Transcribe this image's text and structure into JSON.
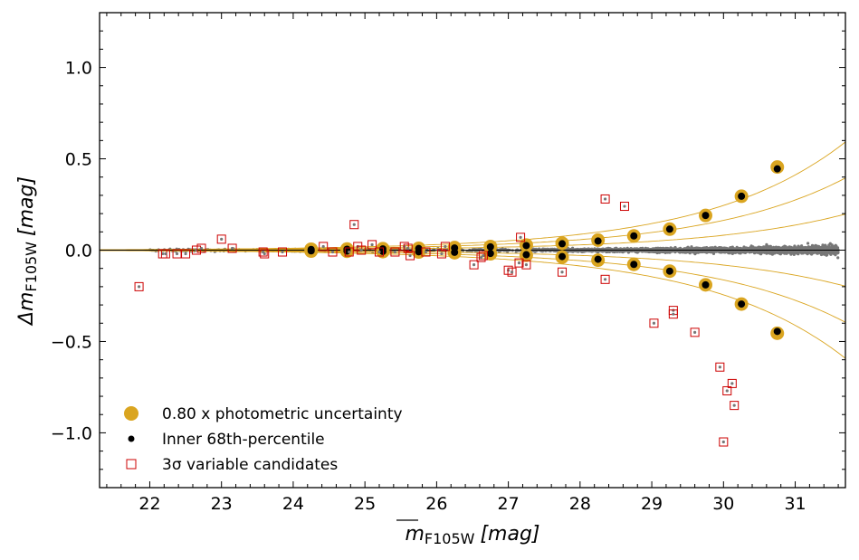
{
  "chart_data": {
    "type": "scatter",
    "xlabel": {
      "main": "m",
      "sub": "F105W",
      "unit": "[mag]"
    },
    "ylabel": {
      "main": "Δm",
      "sub": "F105W",
      "unit": "[mag]"
    },
    "xlim": [
      21.3,
      31.7
    ],
    "ylim": [
      -1.3,
      1.3
    ],
    "xticks": [
      22,
      23,
      24,
      25,
      26,
      27,
      28,
      29,
      30,
      31
    ],
    "yticks": [
      -1.0,
      -0.5,
      0.0,
      0.5,
      1.0
    ],
    "ytick_labels": [
      "−1.0",
      "−0.5",
      "0.0",
      "0.5",
      "1.0"
    ],
    "legend": {
      "position": "lower-left",
      "entries": [
        {
          "label": "0.80 x photometric uncertainty",
          "marker": "large-circle",
          "color": "#DAA520"
        },
        {
          "label": "Inner 68th-percentile",
          "marker": "small-circle",
          "color": "#000000"
        },
        {
          "label": "3σ variable candidates",
          "marker": "open-square",
          "color": "#CC0000"
        }
      ]
    },
    "colors": {
      "points": "#777777",
      "uncertainty": "#DAA520",
      "percentile": "#000000",
      "variables": "#CC0000",
      "curves": "#DAA520"
    },
    "uncertainty_points": {
      "x": [
        24.25,
        24.75,
        25.25,
        25.75,
        26.25,
        26.75,
        27.25,
        27.75,
        28.25,
        28.75,
        29.25,
        29.75,
        30.25,
        30.75
      ],
      "upper": [
        0.005,
        0.006,
        0.008,
        0.01,
        0.014,
        0.02,
        0.028,
        0.038,
        0.055,
        0.078,
        0.115,
        0.19,
        0.295,
        0.455
      ],
      "lower": [
        -0.005,
        -0.006,
        -0.008,
        -0.01,
        -0.014,
        -0.02,
        -0.028,
        -0.038,
        -0.055,
        -0.078,
        -0.115,
        -0.19,
        -0.295,
        -0.455
      ]
    },
    "percentile_points": {
      "x": [
        24.25,
        24.75,
        25.25,
        25.75,
        26.25,
        26.75,
        27.25,
        27.75,
        28.25,
        28.75,
        29.25,
        29.75,
        30.25,
        30.75
      ],
      "upper": [
        0.004,
        0.005,
        0.007,
        0.009,
        0.012,
        0.018,
        0.025,
        0.035,
        0.05,
        0.078,
        0.115,
        0.19,
        0.295,
        0.445
      ],
      "lower": [
        -0.004,
        -0.005,
        -0.007,
        -0.009,
        -0.012,
        -0.018,
        -0.025,
        -0.035,
        -0.05,
        -0.078,
        -0.115,
        -0.19,
        -0.295,
        -0.445
      ]
    },
    "variable_candidates": [
      [
        21.85,
        -0.2
      ],
      [
        22.18,
        -0.02
      ],
      [
        22.22,
        -0.02
      ],
      [
        22.38,
        -0.02
      ],
      [
        22.5,
        -0.02
      ],
      [
        22.65,
        0.0
      ],
      [
        22.72,
        0.01
      ],
      [
        23.0,
        0.06
      ],
      [
        23.15,
        0.01
      ],
      [
        23.58,
        -0.01
      ],
      [
        23.6,
        -0.02
      ],
      [
        23.85,
        -0.01
      ],
      [
        24.42,
        0.02
      ],
      [
        24.55,
        -0.01
      ],
      [
        24.78,
        -0.01
      ],
      [
        24.85,
        0.14
      ],
      [
        24.9,
        0.02
      ],
      [
        24.95,
        0.0
      ],
      [
        25.1,
        0.03
      ],
      [
        25.2,
        -0.01
      ],
      [
        25.42,
        -0.01
      ],
      [
        25.55,
        0.02
      ],
      [
        25.6,
        0.01
      ],
      [
        25.63,
        -0.03
      ],
      [
        25.85,
        -0.01
      ],
      [
        26.07,
        -0.02
      ],
      [
        26.12,
        0.02
      ],
      [
        26.52,
        -0.08
      ],
      [
        26.62,
        -0.04
      ],
      [
        26.65,
        -0.03
      ],
      [
        27.0,
        -0.11
      ],
      [
        27.05,
        -0.12
      ],
      [
        27.15,
        -0.07
      ],
      [
        27.17,
        0.07
      ],
      [
        27.25,
        -0.08
      ],
      [
        27.75,
        -0.12
      ],
      [
        28.35,
        0.28
      ],
      [
        28.35,
        -0.16
      ],
      [
        28.62,
        0.24
      ],
      [
        29.03,
        -0.4
      ],
      [
        29.3,
        -0.33
      ],
      [
        29.3,
        -0.35
      ],
      [
        29.6,
        -0.45
      ],
      [
        29.95,
        -0.64
      ],
      [
        30.05,
        -0.77
      ],
      [
        30.12,
        -0.73
      ],
      [
        30.15,
        -0.85
      ],
      [
        30.0,
        -1.05
      ]
    ],
    "curves": [
      {
        "name": "inner",
        "coeff": 1.5e-05,
        "exp": 0.52,
        "mag0": 20
      },
      {
        "name": "middle",
        "coeff": 3e-05,
        "exp": 0.52,
        "mag0": 20
      },
      {
        "name": "outer",
        "coeff": 4.5e-05,
        "exp": 0.52,
        "mag0": 20
      }
    ],
    "scatter_seed": 1105
  }
}
